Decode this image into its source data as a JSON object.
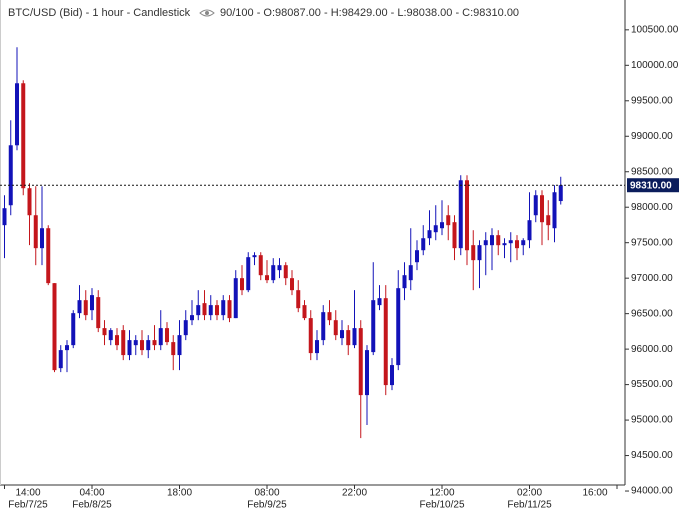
{
  "chart_data": {
    "type": "candlestick",
    "title": "BTC/USD (Bid) - 1 hour - Candlestick",
    "subtitle": "90/100 - O:98087.00 - H:98429.00 - L:98038.00 - C:98310.00",
    "categories": [
      "14:00",
      null,
      null,
      null,
      null,
      null,
      null,
      null,
      null,
      null,
      null,
      null,
      null,
      null,
      "04:00",
      null,
      null,
      null,
      null,
      null,
      null,
      null,
      null,
      null,
      null,
      null,
      null,
      null,
      "18:00",
      null,
      null,
      null,
      null,
      null,
      null,
      null,
      null,
      null,
      null,
      null,
      null,
      null,
      "08:00",
      null,
      null,
      null,
      null,
      null,
      null,
      null,
      null,
      null,
      null,
      null,
      null,
      null,
      "22:00",
      null,
      null,
      null,
      null,
      null,
      null,
      null,
      null,
      null,
      null,
      null,
      null,
      null,
      "12:00",
      null,
      null,
      null,
      null,
      null,
      null,
      null,
      null,
      null,
      null,
      null,
      null,
      null,
      "02:00",
      null,
      null,
      null,
      null,
      null,
      null,
      null,
      null,
      null,
      null,
      null,
      null,
      null,
      "16:00"
    ],
    "dates": [
      "Feb/7/25",
      null,
      null,
      null,
      null,
      null,
      null,
      null,
      null,
      null,
      null,
      null,
      null,
      null,
      "Feb/8/25",
      null,
      null,
      null,
      null,
      null,
      null,
      null,
      null,
      null,
      null,
      null,
      null,
      null,
      null,
      null,
      null,
      null,
      null,
      null,
      null,
      null,
      null,
      null,
      null,
      null,
      null,
      null,
      "Feb/9/25",
      null,
      null,
      null,
      null,
      null,
      null,
      null,
      null,
      null,
      null,
      null,
      null,
      null,
      null,
      null,
      null,
      null,
      null,
      null,
      null,
      null,
      null,
      null,
      null,
      null,
      null,
      null,
      "Feb/10/25",
      null,
      null,
      null,
      null,
      null,
      null,
      null,
      null,
      null,
      null,
      null,
      null,
      null,
      "Feb/11/25",
      null,
      null,
      null,
      null,
      null,
      null,
      null,
      null,
      null,
      null,
      null,
      null,
      null,
      null
    ],
    "open": [
      97747,
      98028,
      98873,
      99747,
      98268,
      97887,
      97423,
      97704,
      96930,
      95732,
      95986,
      96056,
      96507,
      96690,
      96549,
      96733,
      96296,
      96127,
      96197,
      96268,
      95916,
      96056,
      96127,
      95986,
      96127,
      96056,
      96296,
      96099,
      95916,
      96197,
      96408,
      96479,
      96648,
      96479,
      96620,
      96479,
      96690,
      96437,
      97000,
      96831,
      97296,
      97324,
      97042,
      96972,
      97113,
      97183,
      97000,
      96831,
      96620,
      96437,
      95944,
      96127,
      96521,
      96408,
      96155,
      96268,
      96056,
      96296,
      95352,
      95958,
      96620,
      96718,
      95493,
      95775,
      96859,
      96972,
      97225,
      97394,
      97563,
      97648,
      97704,
      97887,
      97789,
      97423,
      98380,
      97465,
      97254,
      97465,
      97465,
      97606,
      97465,
      97493,
      97535,
      97465,
      97535,
      97887,
      98169,
      97887,
      97704,
      98087,
      null,
      null,
      null,
      null,
      null,
      null,
      null,
      null,
      null
    ],
    "high": [
      98169,
      99225,
      100254,
      99789,
      98338,
      98296,
      98296,
      97746,
      96930,
      96056,
      96127,
      96549,
      96902,
      96831,
      96859,
      96831,
      96408,
      96296,
      96296,
      96338,
      96268,
      96197,
      96268,
      96197,
      96338,
      96549,
      96380,
      96197,
      96408,
      96549,
      96690,
      96831,
      96831,
      96761,
      96690,
      96761,
      96761,
      97113,
      97183,
      97366,
      97366,
      97366,
      97254,
      97282,
      97282,
      97225,
      97113,
      96972,
      96690,
      96549,
      96268,
      96620,
      96690,
      96549,
      96408,
      96338,
      96831,
      96408,
      96056,
      97225,
      96902,
      96902,
      95873,
      97113,
      97225,
      97704,
      97535,
      97747,
      97958,
      98028,
      98099,
      98028,
      97887,
      98451,
      98451,
      97676,
      97535,
      97648,
      97704,
      97676,
      97563,
      97648,
      97606,
      97563,
      98211,
      98240,
      98240,
      98099,
      98310,
      98429,
      null,
      null,
      null,
      null,
      null,
      null,
      null,
      null,
      null
    ],
    "low": [
      97282,
      97887,
      98803,
      98169,
      97465,
      97183,
      97183,
      96902,
      95676,
      95676,
      95676,
      96014,
      96437,
      96408,
      96408,
      96240,
      96056,
      96056,
      95986,
      95845,
      95845,
      95916,
      95916,
      95873,
      95986,
      95986,
      96056,
      95704,
      95704,
      96127,
      96338,
      96408,
      96408,
      96408,
      96408,
      96408,
      96380,
      96437,
      96761,
      96803,
      97183,
      96972,
      96930,
      96930,
      97000,
      96902,
      96761,
      96521,
      96408,
      95845,
      95845,
      96056,
      96338,
      96127,
      96056,
      95916,
      96014,
      94746,
      94930,
      95916,
      96549,
      95352,
      95423,
      95704,
      96690,
      96831,
      97113,
      97324,
      97465,
      97535,
      97606,
      97535,
      97254,
      97324,
      97183,
      96831,
      96859,
      97042,
      97113,
      97324,
      97282,
      97225,
      97254,
      97324,
      97423,
      97789,
      97465,
      97535,
      97507,
      98038,
      null,
      null,
      null,
      null,
      null,
      null,
      null,
      null,
      null
    ],
    "close": [
      97986,
      98873,
      99747,
      98268,
      97887,
      97423,
      97704,
      96930,
      95704,
      95986,
      96056,
      96507,
      96690,
      96479,
      96761,
      96296,
      96197,
      96268,
      96056,
      95916,
      96127,
      96127,
      95986,
      96127,
      96056,
      96296,
      96099,
      95916,
      96197,
      96408,
      96479,
      96620,
      96479,
      96620,
      96479,
      96690,
      96437,
      97000,
      96831,
      97296,
      97324,
      97042,
      96972,
      97183,
      97183,
      97000,
      96831,
      96577,
      96437,
      95944,
      96127,
      96521,
      96408,
      96197,
      96268,
      96056,
      96296,
      95352,
      95986,
      96690,
      96718,
      95493,
      95775,
      96859,
      97042,
      97183,
      97394,
      97563,
      97676,
      97746,
      97789,
      97747,
      97423,
      98380,
      97394,
      97254,
      97465,
      97535,
      97606,
      97465,
      97493,
      97535,
      97423,
      97535,
      97817,
      98169,
      97789,
      97747,
      98211,
      98310,
      null,
      null,
      null,
      null,
      null,
      null,
      null,
      null,
      null
    ],
    "up_color": "#1212b8",
    "down_color": "#c4161c",
    "last_price": {
      "value": 98310,
      "label": "98310.00"
    },
    "ylim": [
      94085,
      100850
    ],
    "yticks": [
      {
        "value": 94000,
        "label": "94000.00"
      },
      {
        "value": 94500,
        "label": "94500.00"
      },
      {
        "value": 95000,
        "label": "95000.00"
      },
      {
        "value": 95500,
        "label": "95500.00"
      },
      {
        "value": 96000,
        "label": "96000.00"
      },
      {
        "value": 96500,
        "label": "96500.00"
      },
      {
        "value": 97000,
        "label": "97000.00"
      },
      {
        "value": 97500,
        "label": "97500.00"
      },
      {
        "value": 98000,
        "label": "98000.00"
      },
      {
        "value": 98500,
        "label": "98500.00"
      },
      {
        "value": 99000,
        "label": "99000.00"
      },
      {
        "value": 99500,
        "label": "99500.00"
      },
      {
        "value": 100000,
        "label": "100000.00"
      },
      {
        "value": 100500,
        "label": "100500.00"
      }
    ]
  }
}
